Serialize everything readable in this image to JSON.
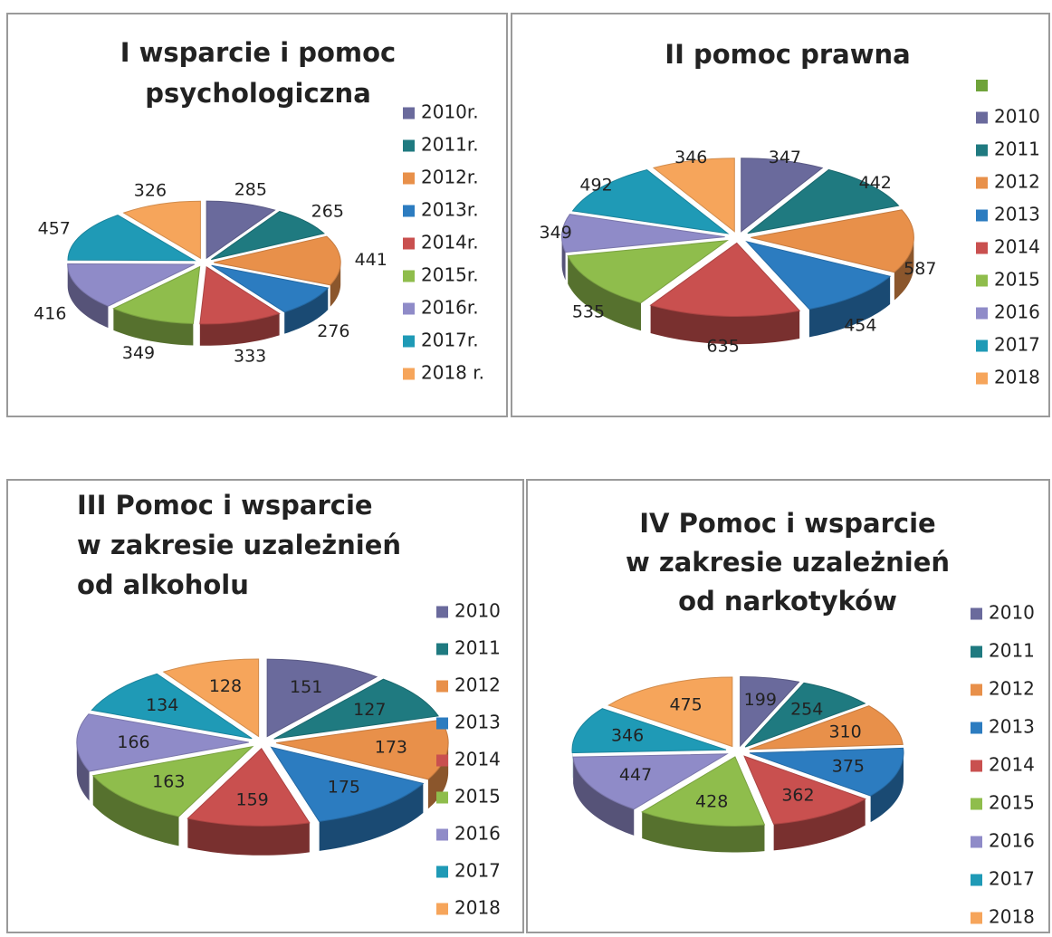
{
  "chart_data": [
    {
      "type": "pie",
      "title": [
        "I wsparcie i pomoc",
        "psychologiczna"
      ],
      "categories": [
        "2010r.",
        "2011r.",
        "2012r.",
        "2013r.",
        "2014r.",
        "2015r.",
        "2016r.",
        "2017r.",
        "2018 r."
      ],
      "values": [
        285,
        265,
        441,
        276,
        333,
        349,
        416,
        457,
        326
      ],
      "colors": [
        "#6a6a9c",
        "#1f7a80",
        "#e8904a",
        "#2c7cc0",
        "#c9504f",
        "#8fbd4c",
        "#8f8bc8",
        "#1f9ab6",
        "#f6a55b"
      ],
      "legend": "right"
    },
    {
      "type": "pie",
      "title": [
        "II pomoc prawna"
      ],
      "categories": [
        "2010",
        "2011",
        "2012",
        "2013",
        "2014",
        "2015",
        "2016",
        "2017",
        "2018"
      ],
      "values": [
        347,
        442,
        587,
        454,
        635,
        535,
        349,
        492,
        346
      ],
      "colors": [
        "#6a6a9c",
        "#1f7a80",
        "#e8904a",
        "#2c7cc0",
        "#c9504f",
        "#8fbd4c",
        "#8f8bc8",
        "#1f9ab6",
        "#f6a55b"
      ],
      "legend": "right"
    },
    {
      "type": "pie",
      "title": [
        "III Pomoc i wsparcie",
        "w zakresie uzależnień",
        "od alkoholu"
      ],
      "categories": [
        "2010",
        "2011",
        "2012",
        "2013",
        "2014",
        "2015",
        "2016",
        "2017",
        "2018"
      ],
      "values": [
        151,
        127,
        173,
        175,
        159,
        163,
        166,
        134,
        128
      ],
      "colors": [
        "#6a6a9c",
        "#1f7a80",
        "#e8904a",
        "#2c7cc0",
        "#c9504f",
        "#8fbd4c",
        "#8f8bc8",
        "#1f9ab6",
        "#f6a55b"
      ],
      "legend": "right"
    },
    {
      "type": "pie",
      "title": [
        "IV Pomoc i wsparcie",
        "w zakresie uzależnień",
        "od narkotyków"
      ],
      "categories": [
        "2010",
        "2011",
        "2012",
        "2013",
        "2014",
        "2015",
        "2016",
        "2017",
        "2018"
      ],
      "values": [
        199,
        254,
        310,
        375,
        362,
        428,
        447,
        346,
        475
      ],
      "colors": [
        "#6a6a9c",
        "#1f7a80",
        "#e8904a",
        "#2c7cc0",
        "#c9504f",
        "#8fbd4c",
        "#8f8bc8",
        "#1f9ab6",
        "#f6a55b"
      ],
      "legend": "right"
    }
  ]
}
